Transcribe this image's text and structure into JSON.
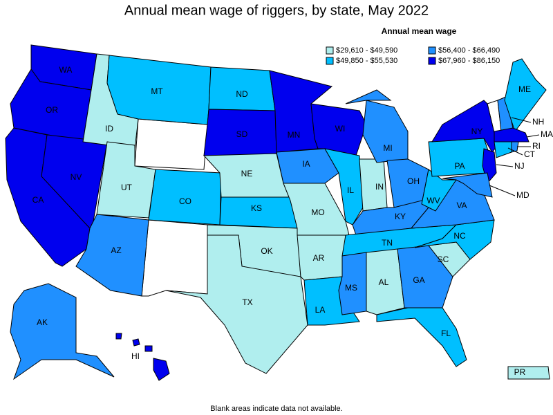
{
  "title": "Annual mean wage of riggers, by state, May 2022",
  "legend": {
    "title": "Annual mean wage",
    "bins": [
      {
        "label": "$29,610 - $49,590",
        "color": "#b0eeee"
      },
      {
        "label": "$49,850 - $55,530",
        "color": "#00bfff"
      },
      {
        "label": "$56,400 - $66,490",
        "color": "#2090ff"
      },
      {
        "label": "$67,960 - $86,150",
        "color": "#0000ee"
      }
    ]
  },
  "states": [
    {
      "label": "WA",
      "bin": 3
    },
    {
      "label": "OR",
      "bin": 3
    },
    {
      "label": "CA",
      "bin": 3
    },
    {
      "label": "NV",
      "bin": 3
    },
    {
      "label": "ID",
      "bin": 0
    },
    {
      "label": "MT",
      "bin": 1
    },
    {
      "label": "UT",
      "bin": 0
    },
    {
      "label": "CO",
      "bin": 1
    },
    {
      "label": "AZ",
      "bin": 2
    },
    {
      "label": "ND",
      "bin": 1
    },
    {
      "label": "SD",
      "bin": 3
    },
    {
      "label": "NE",
      "bin": 0
    },
    {
      "label": "KS",
      "bin": 1
    },
    {
      "label": "OK",
      "bin": 0
    },
    {
      "label": "TX",
      "bin": 0
    },
    {
      "label": "MN",
      "bin": 3
    },
    {
      "label": "IA",
      "bin": 2
    },
    {
      "label": "MO",
      "bin": 0
    },
    {
      "label": "AR",
      "bin": 0
    },
    {
      "label": "LA",
      "bin": 1
    },
    {
      "label": "WI",
      "bin": 3
    },
    {
      "label": "IL",
      "bin": 1
    },
    {
      "label": "IN",
      "bin": 0
    },
    {
      "label": "MI",
      "bin": 2
    },
    {
      "label": "OH",
      "bin": 2
    },
    {
      "label": "KY",
      "bin": 2
    },
    {
      "label": "TN",
      "bin": 1
    },
    {
      "label": "MS",
      "bin": 2
    },
    {
      "label": "AL",
      "bin": 0
    },
    {
      "label": "GA",
      "bin": 2
    },
    {
      "label": "FL",
      "bin": 1
    },
    {
      "label": "SC",
      "bin": 0
    },
    {
      "label": "NC",
      "bin": 1
    },
    {
      "label": "VA",
      "bin": 2
    },
    {
      "label": "WV",
      "bin": 1
    },
    {
      "label": "PA",
      "bin": 1
    },
    {
      "label": "NY",
      "bin": 3
    },
    {
      "label": "NJ",
      "bin": 3
    },
    {
      "label": "MD",
      "bin": 2
    },
    {
      "label": "NH",
      "bin": 2
    },
    {
      "label": "ME",
      "bin": 1
    },
    {
      "label": "MA",
      "bin": 3
    },
    {
      "label": "CT",
      "bin": 1
    },
    {
      "label": "RI",
      "bin": 2
    },
    {
      "label": "AK",
      "bin": 2
    },
    {
      "label": "HI",
      "bin": 3
    },
    {
      "label": "PR",
      "bin": 0
    }
  ],
  "footnote": "Blank areas indicate data not available."
}
